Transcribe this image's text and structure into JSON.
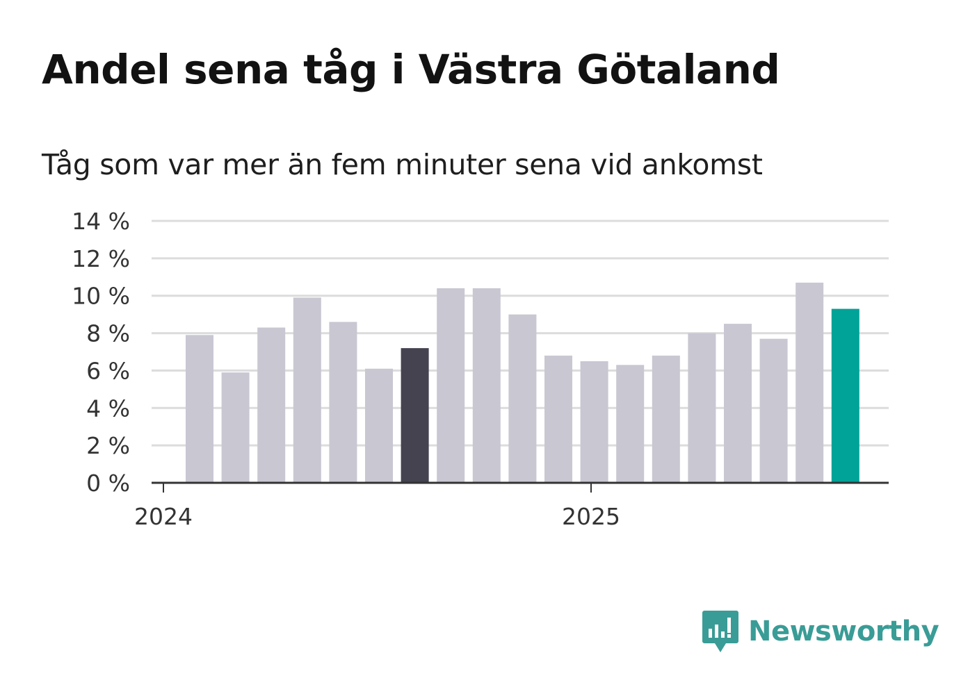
{
  "title": "Andel sena tåg i Västra Götaland",
  "subtitle": "Tåg som var mer än fem minuter sena vid ankomst",
  "brand": "Newsworthy",
  "colors": {
    "bar_default": "#c8c7d2",
    "bar_highlight_dark": "#44434f",
    "bar_highlight_latest": "#00a398",
    "grid": "#dcdcdc",
    "axis": "#333333",
    "brand": "#3a9c96"
  },
  "chart_data": {
    "type": "bar",
    "title": "Andel sena tåg i Västra Götaland",
    "subtitle": "Tåg som var mer än fem minuter sena vid ankomst",
    "xlabel": "",
    "ylabel": "",
    "ylim": [
      0,
      14
    ],
    "yticks": [
      0,
      2,
      4,
      6,
      8,
      10,
      12,
      14
    ],
    "ytick_labels": [
      "0 %",
      "2 %",
      "4 %",
      "6 %",
      "8 %",
      "10 %",
      "12 %",
      "14 %"
    ],
    "xtick_labels": [
      "2024",
      "2025"
    ],
    "xtick_positions": [
      0,
      12
    ],
    "grid": true,
    "values": [
      7.9,
      5.9,
      8.3,
      9.9,
      8.6,
      6.1,
      7.2,
      10.4,
      10.4,
      9.0,
      6.8,
      6.5,
      6.3,
      6.8,
      8.0,
      8.5,
      7.7,
      10.7,
      9.3
    ],
    "highlight_dark_index": 6,
    "highlight_latest_index": 18
  }
}
